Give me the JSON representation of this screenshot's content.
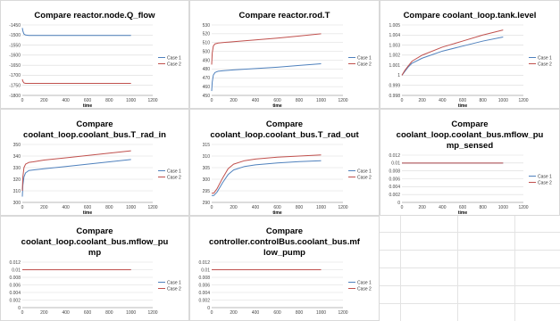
{
  "colors": {
    "case1": "#4F81BD",
    "case2": "#C0504D",
    "grid": "#d9d9d9"
  },
  "chart_data": [
    {
      "type": "line",
      "title": "Compare reactor.node.Q_flow",
      "xlabel": "time",
      "xlim": [
        0,
        1200
      ],
      "xticks": [
        0,
        200,
        400,
        600,
        800,
        1000,
        1200
      ],
      "ylim": [
        -1800,
        -1450
      ],
      "yticks": [
        -1800,
        -1750,
        -1700,
        -1650,
        -1600,
        -1550,
        -1500,
        -1450
      ],
      "legend": "right",
      "series": [
        {
          "name": "Case 1",
          "color": "#4F81BD",
          "x": [
            0,
            5,
            15,
            30,
            60,
            100,
            200,
            400,
            600,
            800,
            1000
          ],
          "y": [
            -1465,
            -1480,
            -1495,
            -1500,
            -1502,
            -1502,
            -1502,
            -1502,
            -1502,
            -1502,
            -1502
          ]
        },
        {
          "name": "Case 2",
          "color": "#C0504D",
          "x": [
            0,
            5,
            15,
            30,
            60,
            100,
            200,
            400,
            600,
            800,
            1000
          ],
          "y": [
            -1720,
            -1730,
            -1738,
            -1740,
            -1740,
            -1740,
            -1740,
            -1740,
            -1740,
            -1740,
            -1740
          ]
        }
      ]
    },
    {
      "type": "line",
      "title": "Compare reactor.rod.T",
      "xlabel": "time",
      "xlim": [
        0,
        1200
      ],
      "xticks": [
        0,
        200,
        400,
        600,
        800,
        1000,
        1200
      ],
      "ylim": [
        450,
        530
      ],
      "yticks": [
        450,
        460,
        470,
        480,
        490,
        500,
        510,
        520,
        530
      ],
      "legend": "right",
      "series": [
        {
          "name": "Case 1",
          "color": "#4F81BD",
          "x": [
            0,
            5,
            15,
            30,
            60,
            100,
            200,
            400,
            600,
            800,
            1000
          ],
          "y": [
            455,
            465,
            473,
            476,
            477.5,
            478,
            479,
            480.5,
            482,
            484,
            486
          ]
        },
        {
          "name": "Case 2",
          "color": "#C0504D",
          "x": [
            0,
            5,
            15,
            30,
            60,
            100,
            200,
            400,
            600,
            800,
            1000
          ],
          "y": [
            485,
            498,
            506,
            508.5,
            509.5,
            510,
            511,
            513,
            515,
            517.5,
            520
          ]
        }
      ]
    },
    {
      "type": "line",
      "title": "Compare coolant_loop.tank.level",
      "xlabel": "time",
      "xlim": [
        0,
        1200
      ],
      "xticks": [
        0,
        200,
        400,
        600,
        800,
        1000,
        1200
      ],
      "ylim": [
        0.998,
        1.005
      ],
      "yticks": [
        0.998,
        0.999,
        1,
        1.001,
        1.002,
        1.003,
        1.004,
        1.005
      ],
      "yticklabels": [
        "0.998",
        "0.999",
        "1",
        "1.001",
        "1.002",
        "1.003",
        "1.004",
        "1.005"
      ],
      "legend": "right",
      "series": [
        {
          "name": "Case 1",
          "color": "#4F81BD",
          "x": [
            0,
            30,
            60,
            100,
            200,
            400,
            600,
            800,
            1000
          ],
          "y": [
            1.0,
            1.0004,
            1.0008,
            1.0012,
            1.0017,
            1.0024,
            1.0029,
            1.0034,
            1.0038
          ]
        },
        {
          "name": "Case 2",
          "color": "#C0504D",
          "x": [
            0,
            30,
            60,
            100,
            200,
            400,
            600,
            800,
            1000
          ],
          "y": [
            1.0,
            1.0005,
            1.0009,
            1.0014,
            1.002,
            1.0028,
            1.0034,
            1.004,
            1.0045
          ]
        }
      ]
    },
    {
      "type": "line",
      "title": "Compare\ncoolant_loop.coolant_bus.T_rad_in",
      "xlabel": "time",
      "xlim": [
        0,
        1200
      ],
      "xticks": [
        0,
        200,
        400,
        600,
        800,
        1000,
        1200
      ],
      "ylim": [
        300,
        350
      ],
      "yticks": [
        300,
        310,
        320,
        330,
        340,
        350
      ],
      "legend": "right",
      "series": [
        {
          "name": "Case 1",
          "color": "#4F81BD",
          "x": [
            0,
            5,
            15,
            30,
            60,
            100,
            200,
            400,
            600,
            800,
            1000
          ],
          "y": [
            305,
            315,
            322,
            325.5,
            327.5,
            328,
            329,
            331,
            333,
            335,
            337
          ]
        },
        {
          "name": "Case 2",
          "color": "#C0504D",
          "x": [
            0,
            5,
            15,
            30,
            60,
            100,
            200,
            400,
            600,
            800,
            1000
          ],
          "y": [
            310,
            322,
            330,
            333,
            334.5,
            335,
            336.5,
            338.5,
            340.5,
            342.5,
            344.5
          ]
        }
      ]
    },
    {
      "type": "line",
      "title": "Compare\ncoolant_loop.coolant_bus.T_rad_out",
      "xlabel": "time",
      "xlim": [
        0,
        1200
      ],
      "xticks": [
        0,
        200,
        400,
        600,
        800,
        1000,
        1200
      ],
      "ylim": [
        290,
        315
      ],
      "yticks": [
        290,
        295,
        300,
        305,
        310,
        315
      ],
      "legend": "right",
      "series": [
        {
          "name": "Case 1",
          "color": "#4F81BD",
          "x": [
            0,
            20,
            50,
            100,
            150,
            200,
            300,
            400,
            600,
            800,
            1000
          ],
          "y": [
            293,
            293,
            294.5,
            298.5,
            302,
            304,
            305.5,
            306.2,
            307,
            307.6,
            308
          ]
        },
        {
          "name": "Case 2",
          "color": "#C0504D",
          "x": [
            0,
            20,
            50,
            100,
            150,
            200,
            300,
            400,
            600,
            800,
            1000
          ],
          "y": [
            294,
            294,
            296,
            300.5,
            304.5,
            306.5,
            308,
            308.7,
            309.5,
            310,
            310.5
          ]
        }
      ]
    },
    {
      "type": "line",
      "title": "Compare\ncoolant_loop.coolant_bus.mflow_pu\nmp_sensed",
      "xlabel": "time",
      "xlim": [
        0,
        1200
      ],
      "xticks": [
        0,
        200,
        400,
        600,
        800,
        1000,
        1200
      ],
      "ylim": [
        0,
        0.012
      ],
      "yticks": [
        0,
        0.002,
        0.004,
        0.006,
        0.008,
        0.01,
        0.012
      ],
      "yticklabels": [
        "0",
        "0.002",
        "0.004",
        "0.006",
        "0.008",
        "0.01",
        "0.012"
      ],
      "legend": "right",
      "series": [
        {
          "name": "Case 1",
          "color": "#4F81BD",
          "x": [
            0,
            1000
          ],
          "y": [
            0.01,
            0.01
          ]
        },
        {
          "name": "Case 2",
          "color": "#C0504D",
          "x": [
            0,
            1000
          ],
          "y": [
            0.01,
            0.01
          ]
        }
      ]
    },
    {
      "type": "line",
      "title": "Compare\ncoolant_loop.coolant_bus.mflow_pu\nmp",
      "xlabel": "",
      "xlim": [
        0,
        1200
      ],
      "xticks": [
        0,
        200,
        400,
        600,
        800,
        1000,
        1200
      ],
      "ylim": [
        0,
        0.012
      ],
      "yticks": [
        0,
        0.002,
        0.004,
        0.006,
        0.008,
        0.01,
        0.012
      ],
      "yticklabels": [
        "0",
        "0.002",
        "0.004",
        "0.006",
        "0.008",
        "0.01",
        "0.012"
      ],
      "legend": "right",
      "series": [
        {
          "name": "Case 1",
          "color": "#4F81BD",
          "x": [
            0,
            1000
          ],
          "y": [
            0.01,
            0.01
          ]
        },
        {
          "name": "Case 2",
          "color": "#C0504D",
          "x": [
            0,
            1000
          ],
          "y": [
            0.01,
            0.01
          ]
        }
      ]
    },
    {
      "type": "line",
      "title": "Compare\ncontroller.controlBus.coolant_bus.mf\nlow_pump",
      "xlabel": "",
      "xlim": [
        0,
        1200
      ],
      "xticks": [
        0,
        200,
        400,
        600,
        800,
        1000,
        1200
      ],
      "ylim": [
        0,
        0.012
      ],
      "yticks": [
        0,
        0.002,
        0.004,
        0.006,
        0.008,
        0.01,
        0.012
      ],
      "yticklabels": [
        "0",
        "0.002",
        "0.004",
        "0.006",
        "0.008",
        "0.01",
        "0.012"
      ],
      "legend": "right",
      "series": [
        {
          "name": "Case 1",
          "color": "#4F81BD",
          "x": [
            0,
            1000
          ],
          "y": [
            0.01,
            0.01
          ]
        },
        {
          "name": "Case 2",
          "color": "#C0504D",
          "x": [
            0,
            1000
          ],
          "y": [
            0.01,
            0.01
          ]
        }
      ]
    }
  ]
}
